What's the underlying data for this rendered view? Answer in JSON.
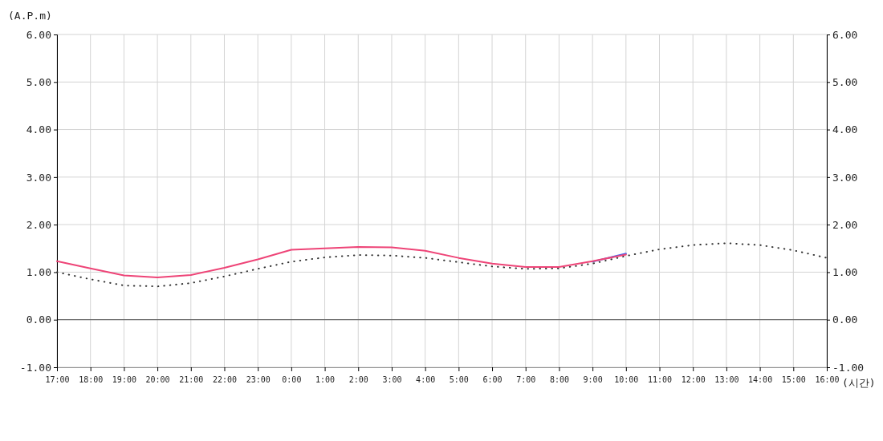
{
  "chart_data": {
    "type": "line",
    "xlabel": "(시간)",
    "ylabel": "(A.P.m)",
    "categories": [
      "17:00",
      "18:00",
      "19:00",
      "20:00",
      "21:00",
      "22:00",
      "23:00",
      "0:00",
      "1:00",
      "2:00",
      "3:00",
      "4:00",
      "5:00",
      "6:00",
      "7:00",
      "8:00",
      "9:00",
      "10:00",
      "11:00",
      "12:00",
      "13:00",
      "14:00",
      "15:00",
      "16:00"
    ],
    "ylim": [
      -1,
      6
    ],
    "yticks": [
      {
        "value": -1,
        "label": "-1.00"
      },
      {
        "value": 0,
        "label": "0.00"
      },
      {
        "value": 1,
        "label": "1.00"
      },
      {
        "value": 2,
        "label": "2.00"
      },
      {
        "value": 3,
        "label": "3.00"
      },
      {
        "value": 4,
        "label": "4.00"
      },
      {
        "value": 5,
        "label": "5.00"
      },
      {
        "value": 6,
        "label": "6.00"
      }
    ],
    "y2lim": [
      -1,
      6
    ],
    "y2ticks": [
      {
        "value": -1,
        "label": "-1.00"
      },
      {
        "value": 0,
        "label": "0.00"
      },
      {
        "value": 1,
        "label": "1.00"
      },
      {
        "value": 2,
        "label": "2.00"
      },
      {
        "value": 3,
        "label": "3.00"
      },
      {
        "value": 4,
        "label": "4.00"
      },
      {
        "value": 5,
        "label": "5.00"
      },
      {
        "value": 6,
        "label": "6.00"
      }
    ],
    "grid": true,
    "marker": "none",
    "ref_lines": [
      {
        "axis": "y",
        "value": 0,
        "color": "#555555"
      }
    ],
    "series": [
      {
        "color": "#333333",
        "line_style": "dotted",
        "values": [
          1.0,
          0.85,
          0.72,
          0.7,
          0.77,
          0.91,
          1.07,
          1.22,
          1.31,
          1.36,
          1.35,
          1.3,
          1.21,
          1.12,
          1.07,
          1.08,
          1.18,
          1.34,
          1.48,
          1.57,
          1.61,
          1.57,
          1.46,
          1.3
        ]
      },
      {
        "color": "#4466ee",
        "line_style": "solid",
        "values": [
          null,
          null,
          null,
          null,
          null,
          null,
          null,
          null,
          null,
          null,
          null,
          null,
          null,
          null,
          null,
          null,
          1.22,
          1.39,
          null,
          null,
          null,
          null,
          null,
          null
        ]
      },
      {
        "color": "#ee4477",
        "line_style": "solid",
        "values": [
          1.23,
          1.08,
          0.93,
          0.89,
          0.94,
          1.09,
          1.27,
          1.47,
          1.5,
          1.53,
          1.52,
          1.45,
          1.3,
          1.18,
          1.11,
          1.11,
          1.23,
          1.37,
          null,
          null,
          null,
          null,
          null,
          null
        ]
      }
    ]
  }
}
